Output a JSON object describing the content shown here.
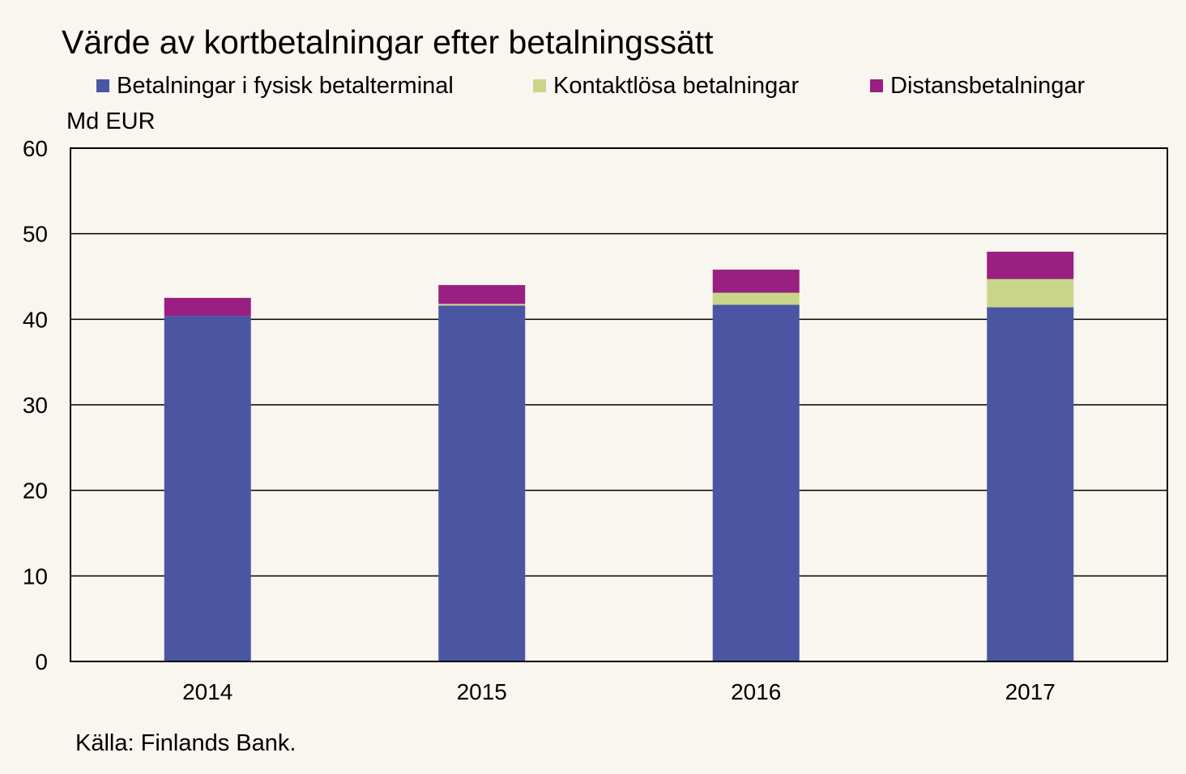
{
  "title": "Värde av kortbetalningar efter betalningssätt",
  "unit_label": "Md EUR",
  "source": "Källa: Finlands Bank.",
  "legend": [
    {
      "label": "Betalningar i fysisk betalterminal",
      "color": "#4b56a3"
    },
    {
      "label": "Kontaktlösa betalningar",
      "color": "#c9d68a"
    },
    {
      "label": "Distansbetalningar",
      "color": "#991f80"
    }
  ],
  "chart_data": {
    "type": "bar",
    "stacked": true,
    "title": "Värde av kortbetalningar efter betalningssätt",
    "xlabel": "",
    "ylabel": "Md EUR",
    "categories": [
      "2014",
      "2015",
      "2016",
      "2017"
    ],
    "series": [
      {
        "name": "Betalningar i fysisk betalterminal",
        "color": "#4b56a3",
        "values": [
          40.4,
          41.6,
          41.7,
          41.4
        ]
      },
      {
        "name": "Kontaktlösa betalningar",
        "color": "#c9d68a",
        "values": [
          0.0,
          0.2,
          1.4,
          3.3
        ]
      },
      {
        "name": "Distansbetalningar",
        "color": "#991f80",
        "values": [
          2.1,
          2.2,
          2.7,
          3.2
        ]
      }
    ],
    "ylim": [
      0,
      60
    ],
    "yticks": [
      0,
      10,
      20,
      30,
      40,
      50,
      60
    ],
    "grid": true,
    "legend_position": "top"
  }
}
